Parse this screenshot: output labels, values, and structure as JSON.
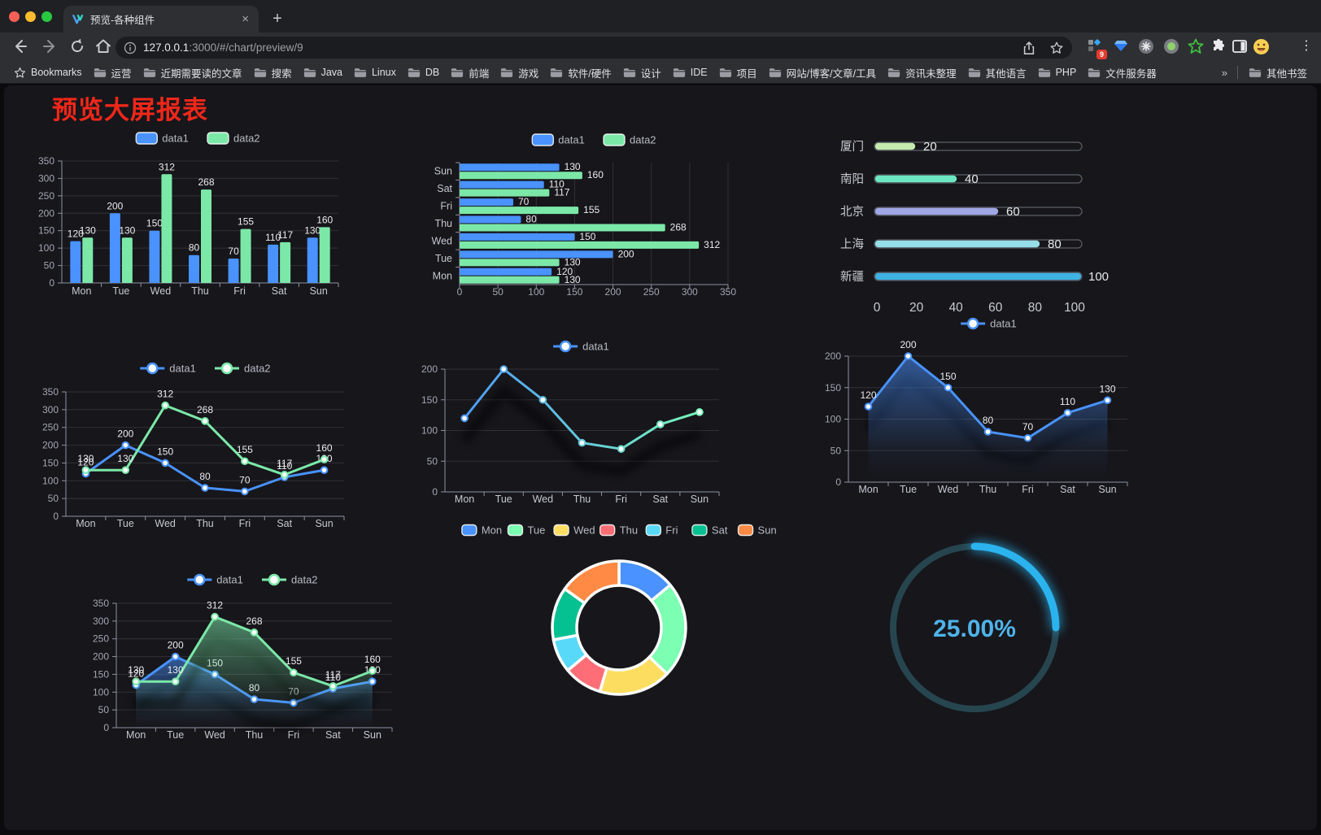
{
  "browser": {
    "tab_title": "预览-各种组件",
    "close_tab": "×",
    "new_tab_button": "+",
    "url": {
      "host": "127.0.0.1",
      "rest": ":3000/#/chart/preview/9"
    },
    "extension_badge": "9",
    "menu_dots": "⋮",
    "bookmarks_bar": {
      "bookmarks_label": "Bookmarks",
      "folders": [
        "运营",
        "近期需要读的文章",
        "搜索",
        "Java",
        "Linux",
        "DB",
        "前端",
        "游戏",
        "软件/硬件",
        "设计",
        "IDE",
        "项目",
        "网站/博客/文章/工具",
        "资讯未整理",
        "其他语言",
        "PHP",
        "文件服务器"
      ],
      "overflow_chevron": "»",
      "other_bookmarks": "其他书签"
    }
  },
  "page": {
    "title": "预览大屏报表"
  },
  "chart_data": [
    {
      "id": "bar-grouped",
      "type": "bar",
      "categories": [
        "Mon",
        "Tue",
        "Wed",
        "Thu",
        "Fri",
        "Sat",
        "Sun"
      ],
      "series": [
        {
          "name": "data1",
          "color": "#4992ff",
          "values": [
            120,
            200,
            150,
            80,
            70,
            110,
            130
          ]
        },
        {
          "name": "data2",
          "color": "#7ce8a8",
          "values": [
            130,
            130,
            312,
            268,
            155,
            117,
            160
          ]
        }
      ],
      "ylim": [
        0,
        350
      ],
      "ystep": 50,
      "legend_position": "top",
      "grid": true
    },
    {
      "id": "hbar-grouped",
      "type": "hbar",
      "categories": [
        "Mon",
        "Tue",
        "Wed",
        "Thu",
        "Fri",
        "Sat",
        "Sun"
      ],
      "series": [
        {
          "name": "data1",
          "color": "#4992ff",
          "values": [
            120,
            200,
            150,
            80,
            70,
            110,
            130
          ]
        },
        {
          "name": "data2",
          "color": "#7ce8a8",
          "values": [
            130,
            130,
            312,
            268,
            155,
            117,
            160
          ]
        }
      ],
      "xlim": [
        0,
        350
      ],
      "xstep": 50,
      "legend_position": "top",
      "grid": true
    },
    {
      "id": "progress-cities",
      "type": "progress",
      "items": [
        {
          "label": "厦门",
          "value": 20,
          "color": "#c4ebad"
        },
        {
          "label": "南阳",
          "value": 40,
          "color": "#6be6c1"
        },
        {
          "label": "北京",
          "value": 60,
          "color": "#a0a7e6"
        },
        {
          "label": "上海",
          "value": 80,
          "color": "#96dee8"
        },
        {
          "label": "新疆",
          "value": 100,
          "color": "#3fb1e3"
        }
      ],
      "xlim": [
        0,
        100
      ],
      "xstep": 20
    },
    {
      "id": "line-two",
      "type": "line",
      "categories": [
        "Mon",
        "Tue",
        "Wed",
        "Thu",
        "Fri",
        "Sat",
        "Sun"
      ],
      "series": [
        {
          "name": "data1",
          "color": "#4992ff",
          "values": [
            120,
            200,
            150,
            80,
            70,
            110,
            130
          ]
        },
        {
          "name": "data2",
          "color": "#7ce8a8",
          "values": [
            130,
            130,
            312,
            268,
            155,
            117,
            160
          ]
        }
      ],
      "ylim": [
        0,
        350
      ],
      "ystep": 50,
      "point_labels": true,
      "legend_position": "top"
    },
    {
      "id": "line-gradient",
      "type": "line",
      "categories": [
        "Mon",
        "Tue",
        "Wed",
        "Thu",
        "Fri",
        "Sat",
        "Sun"
      ],
      "series": [
        {
          "name": "data1",
          "color": "#4992ff",
          "gradient": [
            "#4992ff",
            "#7cffb2"
          ],
          "values": [
            120,
            200,
            150,
            80,
            70,
            110,
            130
          ]
        }
      ],
      "ylim": [
        0,
        200
      ],
      "ystep": 50,
      "point_labels": false,
      "shadow": true,
      "legend_position": "top"
    },
    {
      "id": "area-one",
      "type": "line",
      "categories": [
        "Mon",
        "Tue",
        "Wed",
        "Thu",
        "Fri",
        "Sat",
        "Sun"
      ],
      "series": [
        {
          "name": "data1",
          "color": "#4992ff",
          "area": true,
          "values": [
            120,
            200,
            150,
            80,
            70,
            110,
            130
          ]
        }
      ],
      "ylim": [
        0,
        200
      ],
      "ystep": 50,
      "point_labels": true,
      "shadow": true,
      "legend_position": "top"
    },
    {
      "id": "area-two",
      "type": "line",
      "categories": [
        "Mon",
        "Tue",
        "Wed",
        "Thu",
        "Fri",
        "Sat",
        "Sun"
      ],
      "series": [
        {
          "name": "data1",
          "color": "#4992ff",
          "area": true,
          "values": [
            120,
            200,
            150,
            80,
            70,
            110,
            130
          ]
        },
        {
          "name": "data2",
          "color": "#7ce8a8",
          "area": true,
          "values": [
            130,
            130,
            312,
            268,
            155,
            117,
            160
          ]
        }
      ],
      "ylim": [
        0,
        350
      ],
      "ystep": 50,
      "point_labels": true,
      "shadow": true,
      "legend_position": "top"
    },
    {
      "id": "donut-week",
      "type": "pie",
      "items": [
        {
          "label": "Mon",
          "value": 120,
          "color": "#4992ff"
        },
        {
          "label": "Tue",
          "value": 200,
          "color": "#7cffb2"
        },
        {
          "label": "Wed",
          "value": 150,
          "color": "#fddd60"
        },
        {
          "label": "Thu",
          "value": 80,
          "color": "#ff6e76"
        },
        {
          "label": "Fri",
          "value": 70,
          "color": "#58d9f9"
        },
        {
          "label": "Sat",
          "value": 110,
          "color": "#05c091"
        },
        {
          "label": "Sun",
          "value": 130,
          "color": "#ff8a45"
        }
      ],
      "border_color": "#ffffff",
      "legend_position": "top"
    },
    {
      "id": "gauge-percent",
      "type": "gauge",
      "value": 25,
      "max": 100,
      "label": "25.00%",
      "color": "#2bb3ee",
      "track_color": "#26454f"
    }
  ]
}
